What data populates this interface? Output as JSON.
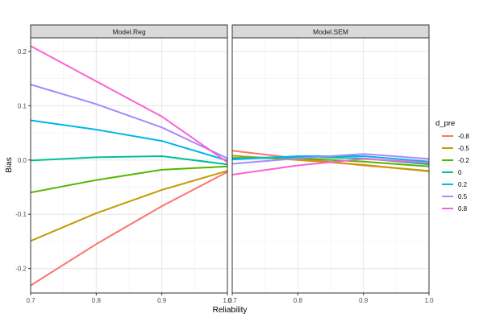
{
  "chart_data": {
    "type": "line",
    "facets": [
      "Model.Reg",
      "Model.SEM"
    ],
    "xlabel": "Reliability",
    "ylabel": "Bias",
    "xlim": [
      0.7,
      1.0
    ],
    "ylim": [
      -0.245,
      0.225
    ],
    "x_ticks": [
      0.7,
      0.8,
      0.9,
      1.0
    ],
    "x_tick_labels": [
      "0.7",
      "0.8",
      "0.9",
      "1.0"
    ],
    "y_ticks": [
      -0.2,
      -0.1,
      0.0,
      0.1,
      0.2
    ],
    "y_tick_labels": [
      "-0.2",
      "-0.1",
      "0.0",
      "0.1",
      "0.2"
    ],
    "grid": true,
    "legend": {
      "title": "d_pre",
      "position": "right"
    },
    "x": [
      0.7,
      0.8,
      0.9,
      1.0
    ],
    "series": [
      {
        "name": "-0.8",
        "color": "#F8766D",
        "Model.Reg": [
          -0.231,
          -0.155,
          -0.085,
          -0.022
        ],
        "Model.SEM": [
          0.017,
          0.003,
          -0.01,
          -0.02
        ]
      },
      {
        "name": "-0.5",
        "color": "#C49A00",
        "Model.Reg": [
          -0.149,
          -0.098,
          -0.055,
          -0.02
        ],
        "Model.SEM": [
          0.008,
          0.0,
          -0.009,
          -0.021
        ]
      },
      {
        "name": "-0.2",
        "color": "#53B400",
        "Model.Reg": [
          -0.06,
          -0.037,
          -0.018,
          -0.012
        ],
        "Model.SEM": [
          0.004,
          0.003,
          -0.003,
          -0.012
        ]
      },
      {
        "name": "0",
        "color": "#00C094",
        "Model.Reg": [
          -0.001,
          0.005,
          0.007,
          -0.008
        ],
        "Model.SEM": [
          0.003,
          0.006,
          0.003,
          -0.008
        ]
      },
      {
        "name": "0.2",
        "color": "#00B6EB",
        "Model.Reg": [
          0.073,
          0.056,
          0.035,
          -0.001
        ],
        "Model.SEM": [
          0.001,
          0.007,
          0.007,
          -0.003
        ]
      },
      {
        "name": "0.5",
        "color": "#A58AFF",
        "Model.Reg": [
          0.139,
          0.103,
          0.06,
          0.003
        ],
        "Model.SEM": [
          -0.007,
          0.003,
          0.011,
          0.002
        ]
      },
      {
        "name": "0.8",
        "color": "#FB61D7",
        "Model.Reg": [
          0.21,
          0.145,
          0.08,
          -0.004
        ],
        "Model.SEM": [
          -0.027,
          -0.01,
          0.002,
          -0.005
        ]
      }
    ]
  }
}
